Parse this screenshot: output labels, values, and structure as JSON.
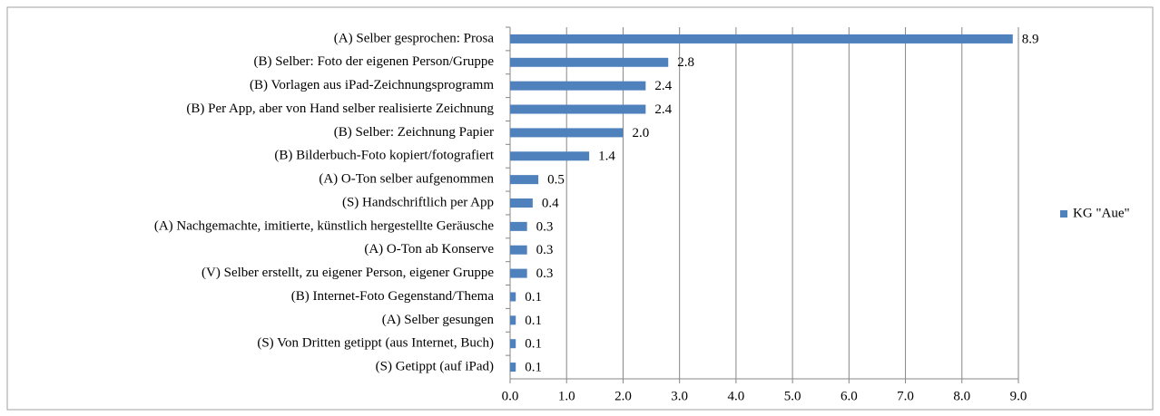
{
  "chart_data": {
    "type": "bar",
    "orientation": "horizontal",
    "categories": [
      "(A) Selber gesprochen: Prosa",
      "(B) Selber: Foto der eigenen Person/Gruppe",
      "(B) Vorlagen aus iPad-Zeichnungsprogramm",
      "(B) Per App, aber von Hand selber realisierte Zeichnung",
      "(B) Selber: Zeichnung Papier",
      "(B) Bilderbuch-Foto kopiert/fotografiert",
      "(A) O-Ton selber aufgenommen",
      "(S) Handschriftlich per App",
      "(A) Nachgemachte, imitierte, künstlich hergestellte Geräusche",
      "(A) O-Ton ab Konserve",
      "(V) Selber erstellt, zu eigener Person, eigener Gruppe",
      "(B) Internet-Foto Gegenstand/Thema",
      "(A) Selber gesungen",
      "(S) Von Dritten getippt (aus Internet, Buch)",
      "(S) Getippt (auf iPad)"
    ],
    "series": [
      {
        "name": "KG \"Aue\"",
        "color": "#4f81bd",
        "values": [
          8.9,
          2.8,
          2.4,
          2.4,
          2.0,
          1.4,
          0.5,
          0.4,
          0.3,
          0.3,
          0.3,
          0.1,
          0.1,
          0.1,
          0.1
        ],
        "value_labels": [
          "8.9",
          "2.8",
          "2.4",
          "2.4",
          "2.0",
          "1.4",
          "0.5",
          "0.4",
          "0.3",
          "0.3",
          "0.3",
          "0.1",
          "0.1",
          "0.1",
          "0.1"
        ]
      }
    ],
    "xlim": [
      0,
      9
    ],
    "xticks": [
      {
        "value": 0,
        "label": "0.0"
      },
      {
        "value": 1,
        "label": "1.0"
      },
      {
        "value": 2,
        "label": "2.0"
      },
      {
        "value": 3,
        "label": "3.0"
      },
      {
        "value": 4,
        "label": "4.0"
      },
      {
        "value": 5,
        "label": "5.0"
      },
      {
        "value": 6,
        "label": "6.0"
      },
      {
        "value": 7,
        "label": "7.0"
      },
      {
        "value": 8,
        "label": "8.0"
      },
      {
        "value": 9,
        "label": "9.0"
      }
    ],
    "grid": true,
    "legend": "right"
  }
}
